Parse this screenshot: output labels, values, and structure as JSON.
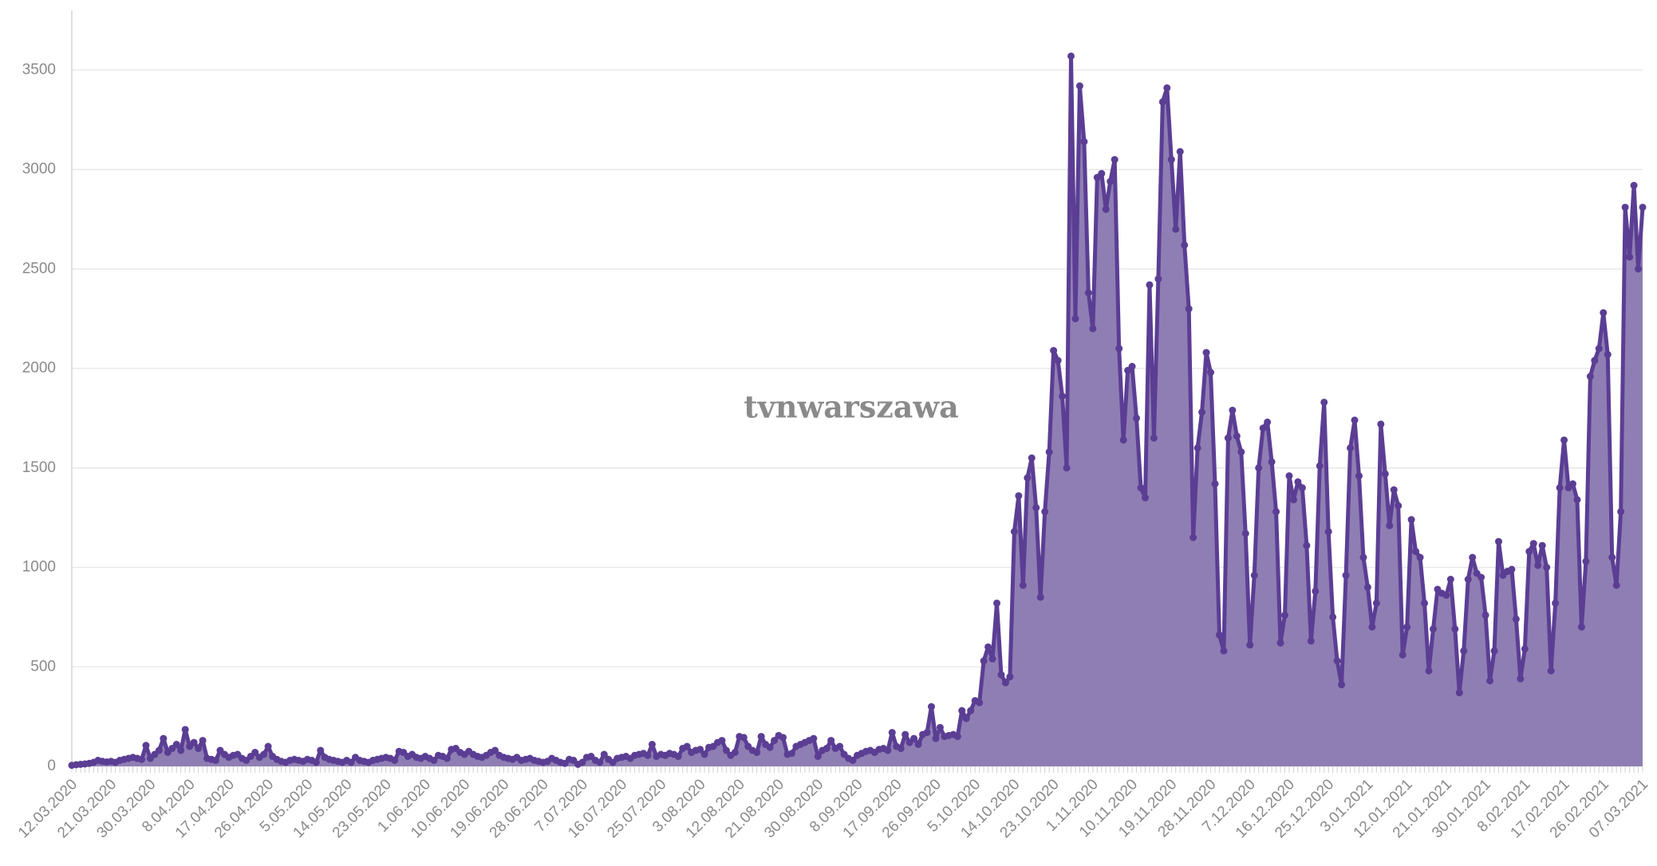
{
  "chart_data": {
    "type": "area",
    "watermark": "tvnwarszawa",
    "color": "#5b3e94",
    "fill": "#8f7eb3",
    "watermark_color": "#e00000",
    "ylim": [
      0,
      3800
    ],
    "yticks": [
      0,
      500,
      1000,
      1500,
      2000,
      2500,
      3000,
      3500
    ],
    "grid": true,
    "categories": [
      "12.03.2020",
      null,
      null,
      null,
      null,
      null,
      null,
      null,
      null,
      "21.03.2020",
      null,
      null,
      null,
      null,
      null,
      null,
      null,
      null,
      "30.03.2020",
      null,
      null,
      null,
      null,
      null,
      null,
      null,
      null,
      "8.04.2020",
      null,
      null,
      null,
      null,
      null,
      null,
      null,
      null,
      "17.04.2020",
      null,
      null,
      null,
      null,
      null,
      null,
      null,
      null,
      "26.04.2020",
      null,
      null,
      null,
      null,
      null,
      null,
      null,
      null,
      "5.05.2020",
      null,
      null,
      null,
      null,
      null,
      null,
      null,
      null,
      "14.05.2020",
      null,
      null,
      null,
      null,
      null,
      null,
      null,
      null,
      "23.05.2020",
      null,
      null,
      null,
      null,
      null,
      null,
      null,
      null,
      "1.06.2020",
      null,
      null,
      null,
      null,
      null,
      null,
      null,
      null,
      "10.06.2020",
      null,
      null,
      null,
      null,
      null,
      null,
      null,
      null,
      "19.06.2020",
      null,
      null,
      null,
      null,
      null,
      null,
      null,
      null,
      "28.06.2020",
      null,
      null,
      null,
      null,
      null,
      null,
      null,
      null,
      "7.07.2020",
      null,
      null,
      null,
      null,
      null,
      null,
      null,
      null,
      "16.07.2020",
      null,
      null,
      null,
      null,
      null,
      null,
      null,
      null,
      "25.07.2020",
      null,
      null,
      null,
      null,
      null,
      null,
      null,
      null,
      "3.08.2020",
      null,
      null,
      null,
      null,
      null,
      null,
      null,
      null,
      "12.08.2020",
      null,
      null,
      null,
      null,
      null,
      null,
      null,
      null,
      "21.08.2020",
      null,
      null,
      null,
      null,
      null,
      null,
      null,
      null,
      "30.08.2020",
      null,
      null,
      null,
      null,
      null,
      null,
      null,
      null,
      "8.09.2020",
      null,
      null,
      null,
      null,
      null,
      null,
      null,
      null,
      "17.09.2020",
      null,
      null,
      null,
      null,
      null,
      null,
      null,
      null,
      "26.09.2020",
      null,
      null,
      null,
      null,
      null,
      null,
      null,
      null,
      "5.10.2020",
      null,
      null,
      null,
      null,
      null,
      null,
      null,
      null,
      "14.10.2020",
      null,
      null,
      null,
      null,
      null,
      null,
      null,
      null,
      "23.10.2020",
      null,
      null,
      null,
      null,
      null,
      null,
      null,
      null,
      "1.11.2020",
      null,
      null,
      null,
      null,
      null,
      null,
      null,
      null,
      "10.11.2020",
      null,
      null,
      null,
      null,
      null,
      null,
      null,
      null,
      "19.11.2020",
      null,
      null,
      null,
      null,
      null,
      null,
      null,
      null,
      "28.11.2020",
      null,
      null,
      null,
      null,
      null,
      null,
      null,
      null,
      "7.12.2020",
      null,
      null,
      null,
      null,
      null,
      null,
      null,
      null,
      "16.12.2020",
      null,
      null,
      null,
      null,
      null,
      null,
      null,
      null,
      "25.12.2020",
      null,
      null,
      null,
      null,
      null,
      null,
      null,
      null,
      "3.01.2021",
      null,
      null,
      null,
      null,
      null,
      null,
      null,
      null,
      "12.01.2021",
      null,
      null,
      null,
      null,
      null,
      null,
      null,
      null,
      "21.01.2021",
      null,
      null,
      null,
      null,
      null,
      null,
      null,
      null,
      "30.01.2021",
      null,
      null,
      null,
      null,
      null,
      null,
      null,
      null,
      "8.02.2021",
      null,
      null,
      null,
      null,
      null,
      null,
      null,
      null,
      "17.02.2021",
      null,
      null,
      null,
      null,
      null,
      null,
      null,
      null,
      "26.02.2021",
      null,
      null,
      null,
      null,
      null,
      null,
      null,
      null,
      "07.03.2021"
    ],
    "values": [
      5,
      8,
      10,
      12,
      15,
      20,
      30,
      25,
      22,
      25,
      20,
      30,
      35,
      40,
      45,
      40,
      35,
      105,
      40,
      60,
      80,
      140,
      70,
      90,
      110,
      80,
      185,
      100,
      120,
      90,
      130,
      40,
      35,
      30,
      80,
      60,
      45,
      55,
      60,
      40,
      30,
      50,
      70,
      45,
      60,
      100,
      50,
      35,
      25,
      20,
      30,
      35,
      30,
      25,
      35,
      30,
      20,
      80,
      45,
      35,
      30,
      25,
      20,
      30,
      20,
      45,
      30,
      25,
      20,
      30,
      35,
      40,
      45,
      40,
      30,
      75,
      70,
      50,
      60,
      45,
      40,
      50,
      40,
      30,
      55,
      50,
      40,
      85,
      90,
      70,
      60,
      75,
      60,
      50,
      45,
      55,
      70,
      80,
      55,
      45,
      40,
      35,
      45,
      30,
      35,
      40,
      30,
      25,
      20,
      25,
      40,
      30,
      20,
      15,
      35,
      30,
      10,
      20,
      45,
      50,
      30,
      20,
      60,
      35,
      20,
      40,
      45,
      50,
      40,
      55,
      60,
      65,
      55,
      110,
      50,
      60,
      55,
      65,
      60,
      50,
      90,
      100,
      70,
      80,
      85,
      60,
      95,
      100,
      120,
      130,
      80,
      55,
      70,
      150,
      145,
      100,
      80,
      70,
      150,
      110,
      95,
      130,
      155,
      145,
      60,
      65,
      100,
      110,
      120,
      130,
      140,
      50,
      80,
      90,
      130,
      90,
      100,
      60,
      40,
      30,
      55,
      65,
      75,
      80,
      70,
      85,
      90,
      80,
      170,
      100,
      90,
      160,
      120,
      140,
      110,
      160,
      170,
      300,
      140,
      195,
      150,
      155,
      160,
      150,
      280,
      240,
      280,
      330,
      320,
      530,
      600,
      540,
      820,
      460,
      420,
      450,
      1180,
      1360,
      910,
      1450,
      1550,
      1300,
      850,
      1280,
      1580,
      2090,
      2040,
      1860,
      1500,
      3570,
      2250,
      3420,
      3140,
      2380,
      2200,
      2960,
      2980,
      2800,
      2940,
      3050,
      2100,
      1640,
      1990,
      2010,
      1750,
      1400,
      1350,
      2420,
      1650,
      2450,
      3340,
      3410,
      3050,
      2700,
      3090,
      2620,
      2300,
      1150,
      1600,
      1780,
      2080,
      1980,
      1420,
      660,
      580,
      1650,
      1790,
      1660,
      1580,
      1170,
      610,
      960,
      1500,
      1700,
      1730,
      1530,
      1280,
      620,
      760,
      1460,
      1340,
      1430,
      1400,
      1110,
      630,
      880,
      1510,
      1830,
      1180,
      750,
      530,
      410,
      960,
      1600,
      1740,
      1460,
      1050,
      900,
      700,
      820,
      1720,
      1470,
      1210,
      1390,
      1310,
      560,
      700,
      1240,
      1080,
      1050,
      820,
      480,
      690,
      890,
      870,
      860,
      940,
      690,
      370,
      580,
      940,
      1050,
      970,
      950,
      760,
      430,
      580,
      1130,
      960,
      980,
      990,
      740,
      440,
      590,
      1080,
      1120,
      1010,
      1110,
      1000,
      480,
      820,
      1400,
      1640,
      1400,
      1420,
      1340,
      700,
      1030,
      1960,
      2040,
      2100,
      2280,
      2070,
      1050,
      910,
      1280,
      2810,
      2560,
      2920,
      2500,
      2810
    ]
  }
}
